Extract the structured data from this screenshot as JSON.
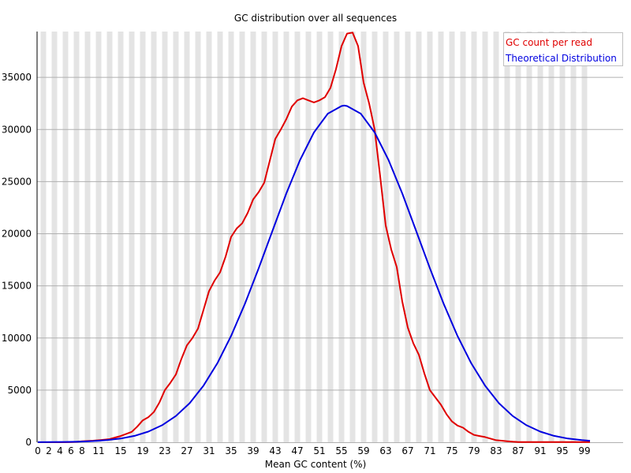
{
  "chart_data": {
    "type": "line",
    "title": "GC distribution over all sequences",
    "xlabel": "Mean GC content (%)",
    "ylabel": "",
    "xlim": [
      0,
      106
    ],
    "ylim": [
      0,
      39400
    ],
    "x_tick_labels": [
      "0",
      "2",
      "4",
      "6",
      "8",
      "11",
      "15",
      "19",
      "23",
      "27",
      "31",
      "35",
      "39",
      "43",
      "47",
      "51",
      "55",
      "59",
      "63",
      "67",
      "71",
      "75",
      "79",
      "83",
      "87",
      "91",
      "95",
      "99"
    ],
    "y_ticks": [
      0,
      5000,
      10000,
      15000,
      20000,
      25000,
      30000,
      35000
    ],
    "grid": true,
    "legend_position": "top-right",
    "series": [
      {
        "name": "GC count per read",
        "color": "#e00000",
        "x": [
          0,
          1,
          2,
          3,
          4,
          5,
          6,
          7,
          8,
          9,
          10,
          11,
          12,
          13,
          14,
          15,
          16,
          17,
          18,
          19,
          20,
          21,
          22,
          23,
          24,
          25,
          26,
          27,
          28,
          29,
          30,
          31,
          32,
          33,
          34,
          35,
          36,
          37,
          38,
          39,
          40,
          41,
          42,
          43,
          44,
          45,
          46,
          47,
          48,
          49,
          50,
          51,
          52,
          53,
          54,
          55,
          56,
          57,
          58,
          59,
          60,
          61,
          62,
          63,
          64,
          65,
          66,
          67,
          68,
          69,
          70,
          71,
          72,
          73,
          74,
          75,
          76,
          77,
          78,
          79,
          80,
          81,
          82,
          83,
          84,
          85,
          86,
          87,
          88,
          89,
          90,
          91,
          92,
          93,
          94,
          95,
          96,
          97,
          98,
          99,
          100
        ],
        "values": [
          0,
          0,
          0,
          0,
          0,
          10,
          20,
          40,
          100,
          120,
          150,
          200,
          250,
          300,
          450,
          600,
          800,
          1000,
          1500,
          2100,
          2400,
          2900,
          3800,
          5000,
          5700,
          6500,
          8000,
          9300,
          10000,
          10900,
          12700,
          14500,
          15500,
          16300,
          17800,
          19700,
          20500,
          21000,
          22000,
          23300,
          24000,
          24900,
          27000,
          29100,
          30000,
          31000,
          32200,
          32800,
          33000,
          32800,
          32600,
          32800,
          33100,
          34000,
          35800,
          38000,
          39200,
          39300,
          38000,
          34500,
          32500,
          30000,
          25500,
          20800,
          18500,
          16800,
          13500,
          11000,
          9500,
          8400,
          6600,
          5000,
          4300,
          3600,
          2700,
          2000,
          1600,
          1400,
          1000,
          700,
          600,
          500,
          350,
          200,
          150,
          100,
          50,
          20,
          20,
          20,
          20,
          20,
          20,
          20,
          20,
          20,
          20,
          20,
          20,
          20,
          20
        ]
      },
      {
        "name": "Theoretical Distribution",
        "color": "#0000e0",
        "x": [
          0,
          2.5,
          5,
          7.5,
          10,
          12.5,
          15,
          17.5,
          20,
          22.5,
          25,
          27.5,
          30,
          32.5,
          35,
          37.5,
          40,
          42.5,
          45,
          47.5,
          50,
          52.5,
          55,
          55.5,
          56,
          58.5,
          61,
          63.5,
          66,
          68.5,
          71,
          73.5,
          76,
          78.5,
          81,
          83.5,
          86,
          88.5,
          91,
          93.5,
          96,
          98.5,
          100
        ],
        "values": [
          7,
          15,
          29,
          58,
          110,
          203,
          359,
          615,
          1018,
          1630,
          2516,
          3750,
          5427,
          7570,
          10200,
          13280,
          16700,
          20300,
          23870,
          27090,
          29720,
          31510,
          32250,
          32300,
          32250,
          31510,
          29720,
          27090,
          23870,
          20300,
          16700,
          13280,
          10200,
          7570,
          5427,
          3750,
          2516,
          1630,
          1018,
          615,
          359,
          203,
          141
        ]
      }
    ]
  }
}
